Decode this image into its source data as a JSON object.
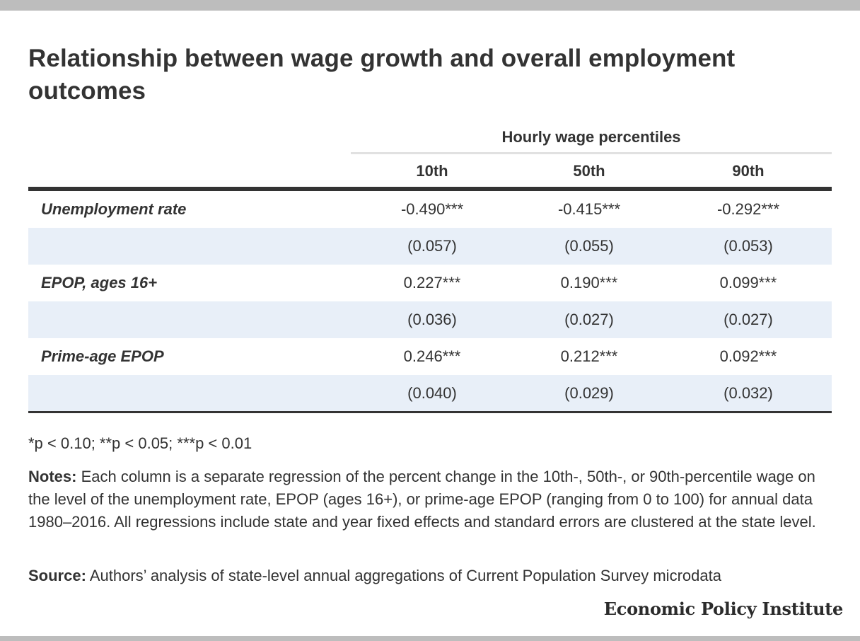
{
  "title": "Relationship between wage growth and overall employment outcomes",
  "table": {
    "group_header": "Hourly wage percentiles",
    "columns": [
      "10th",
      "50th",
      "90th"
    ],
    "rows": [
      {
        "label": "Unemployment rate",
        "values": [
          "-0.490***",
          "-0.415***",
          "-0.292***"
        ]
      },
      {
        "label": "",
        "values": [
          "(0.057)",
          "(0.055)",
          "(0.053)"
        ]
      },
      {
        "label": "EPOP, ages 16+",
        "values": [
          "0.227***",
          "0.190***",
          "0.099***"
        ]
      },
      {
        "label": "",
        "values": [
          "(0.036)",
          "(0.027)",
          "(0.027)"
        ]
      },
      {
        "label": "Prime-age EPOP",
        "values": [
          "0.246***",
          "0.212***",
          "0.092***"
        ]
      },
      {
        "label": "",
        "values": [
          "(0.040)",
          "(0.029)",
          "(0.032)"
        ]
      }
    ]
  },
  "significance": "*p < 0.10; **p < 0.05; ***p < 0.01",
  "notes": {
    "label": "Notes:",
    "text": " Each column is a separate regression of the percent change in the 10th-, 50th-, or 90th-percentile wage on the level of the unemployment rate, EPOP (ages 16+), or prime-age EPOP (ranging from 0 to 100) for annual data 1980–2016. All regressions include state and year fixed effects and standard errors are clustered at the state level."
  },
  "source": {
    "label": "Source:",
    "text": " Authors’ analysis of state-level annual aggregations of Current Population Survey microdata"
  },
  "brand": "Economic Policy Institute",
  "colors": {
    "shaded_row": "#e8eff8",
    "rule_dark": "#333333",
    "rule_light": "#e1e1e1",
    "frame_bar": "#bdbdbd"
  }
}
